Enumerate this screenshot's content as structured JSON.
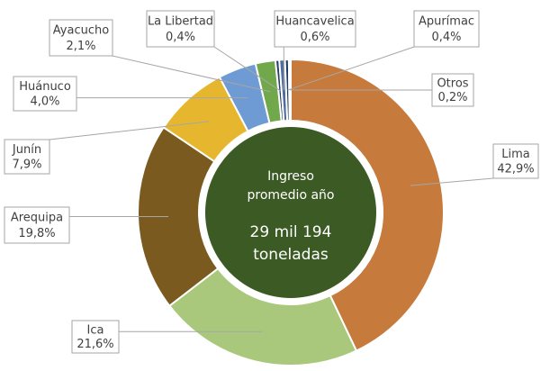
{
  "chart_data": {
    "type": "donut",
    "center_text": [
      "Ingreso",
      "promedio año",
      "29 mil 194",
      "toneladas"
    ],
    "categories": [
      "Lima",
      "Ica",
      "Arequipa",
      "Junín",
      "Huánuco",
      "Ayacucho",
      "La Libertad",
      "Huancavelica",
      "Apurímac",
      "Otros"
    ],
    "values": [
      42.9,
      21.6,
      19.8,
      7.9,
      4.0,
      2.1,
      0.4,
      0.6,
      0.4,
      0.2
    ],
    "value_labels": [
      "42,9%",
      "21,6%",
      "19,8%",
      "7,9%",
      "4,0%",
      "2,1%",
      "0,4%",
      "0,6%",
      "0,4%",
      "0,2%"
    ],
    "colors": [
      "#c67a3c",
      "#a9c87c",
      "#7a5a1f",
      "#e6b72e",
      "#6e9bd3",
      "#71a84b",
      "#2c3f6c",
      "#4c6c9c",
      "#1f3a60",
      "#a5a5a5"
    ]
  }
}
